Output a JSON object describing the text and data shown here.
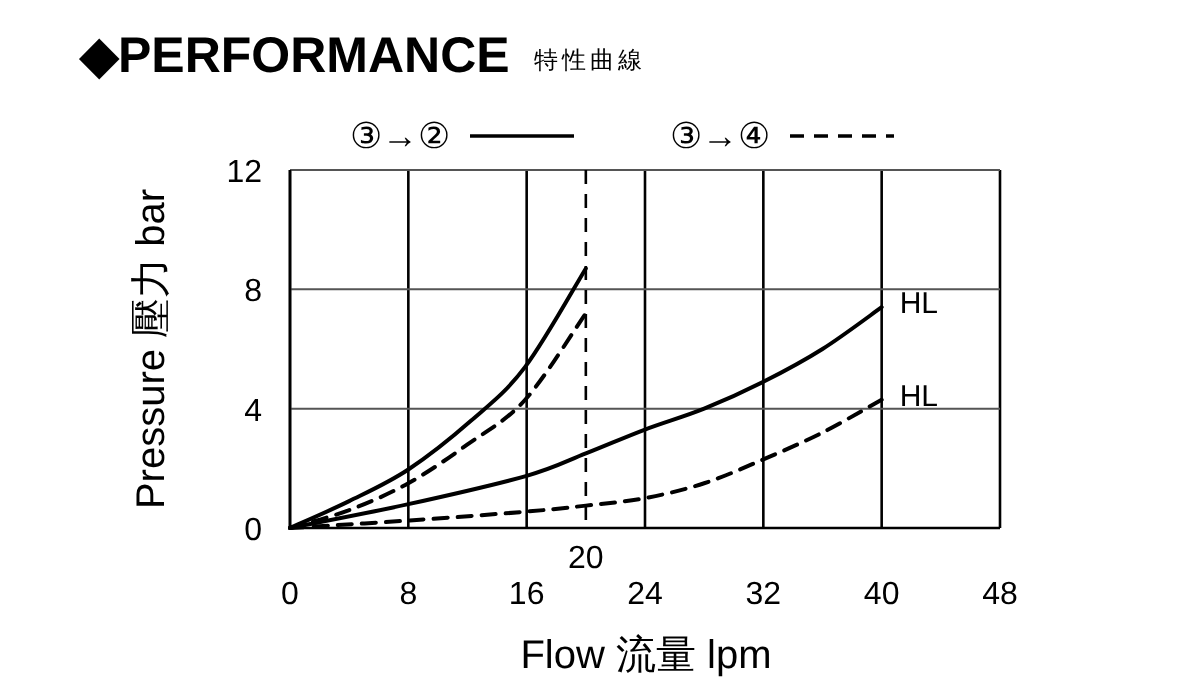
{
  "chart_data": {
    "type": "line",
    "title": "◆PERFORMANCE",
    "subtitle": "特性曲線",
    "xlabel": "Flow 流量 lpm",
    "ylabel": "Pressure 壓力 bar",
    "xlim": [
      0,
      48
    ],
    "xticks": [
      0,
      8,
      16,
      24,
      32,
      40,
      48
    ],
    "ylim": [
      0,
      12
    ],
    "yticks": [
      0,
      4,
      8,
      12
    ],
    "grid": true,
    "legend": "top",
    "series": [
      {
        "name": "③→②",
        "color": "#000000",
        "line_style": "solid",
        "x": [
          0,
          4,
          8,
          12.25,
          15.9,
          20
        ],
        "values": [
          0,
          0.9,
          1.96,
          3.6,
          5.4,
          8.7
        ]
      },
      {
        "name": "③→④",
        "color": "#000000",
        "line_style": "dashed",
        "x": [
          0,
          4,
          8,
          12,
          15.9,
          20
        ],
        "values": [
          0,
          0.6,
          1.5,
          2.8,
          4.3,
          7.2
        ]
      },
      {
        "color": "#000000",
        "line_style": "solid",
        "x": [
          0,
          8,
          16,
          20,
          24,
          28,
          32,
          36,
          40
        ],
        "values": [
          0,
          0.8,
          1.75,
          2.5,
          3.3,
          4.0,
          4.9,
          6.0,
          7.4
        ]
      },
      {
        "color": "#000000",
        "line_style": "dashed",
        "x": [
          0,
          8,
          16,
          20,
          24,
          28,
          32,
          36,
          40
        ],
        "values": [
          0,
          0.25,
          0.55,
          0.75,
          1.0,
          1.5,
          2.3,
          3.2,
          4.3
        ]
      }
    ],
    "ref_lines": [
      {
        "axis": "x",
        "value": 20,
        "label": "20",
        "line_style": "dashed"
      }
    ],
    "annotations": [
      {
        "text": "HL",
        "x": 40,
        "y": 7.4
      },
      {
        "text": "HL",
        "x": 40,
        "y": 4.3
      }
    ]
  }
}
